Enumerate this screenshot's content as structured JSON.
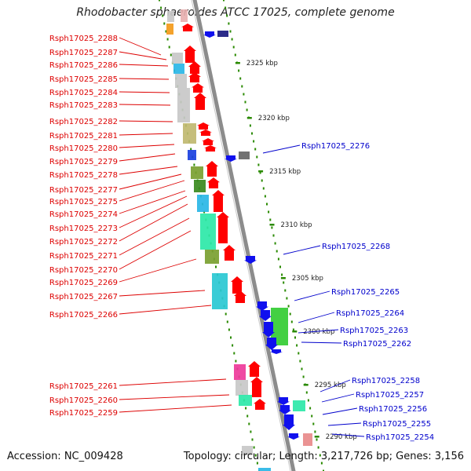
{
  "title": "Rhodobacter sphaeroides ATCC 17025, complete genome",
  "footer": {
    "accession": "Accession: NC_009428",
    "topology": "Topology: circular; Length: 3,217,726 bp; Genes: 3,156"
  },
  "colors": {
    "left_label": "#dd0000",
    "right_label": "#0000cc",
    "backbone": "#8c8c8c",
    "ruler_dots": "#2a8a00",
    "forward_gene": "#ff0000",
    "reverse_gene": "#1010ee"
  },
  "ruler_labels": [
    "2325 kbp",
    "2320 kbp",
    "2315 kbp",
    "2310 kbp",
    "2305 kbp",
    "2300 kbp",
    "2295 kbp",
    "2290 kbp"
  ],
  "left_genes": [
    "Rsph17025_2288",
    "Rsph17025_2287",
    "Rsph17025_2286",
    "Rsph17025_2285",
    "Rsph17025_2284",
    "Rsph17025_2283",
    "Rsph17025_2282",
    "Rsph17025_2281",
    "Rsph17025_2280",
    "Rsph17025_2279",
    "Rsph17025_2278",
    "Rsph17025_2277",
    "Rsph17025_2275",
    "Rsph17025_2274",
    "Rsph17025_2273",
    "Rsph17025_2272",
    "Rsph17025_2271",
    "Rsph17025_2270",
    "Rsph17025_2269",
    "Rsph17025_2267",
    "Rsph17025_2266",
    "Rsph17025_2261",
    "Rsph17025_2260",
    "Rsph17025_2259"
  ],
  "right_genes": [
    "Rsph17025_2276",
    "Rsph17025_2268",
    "Rsph17025_2265",
    "Rsph17025_2264",
    "Rsph17025_2263",
    "Rsph17025_2262",
    "Rsph17025_2258",
    "Rsph17025_2257",
    "Rsph17025_2256",
    "Rsph17025_2255",
    "Rsph17025_2254"
  ]
}
